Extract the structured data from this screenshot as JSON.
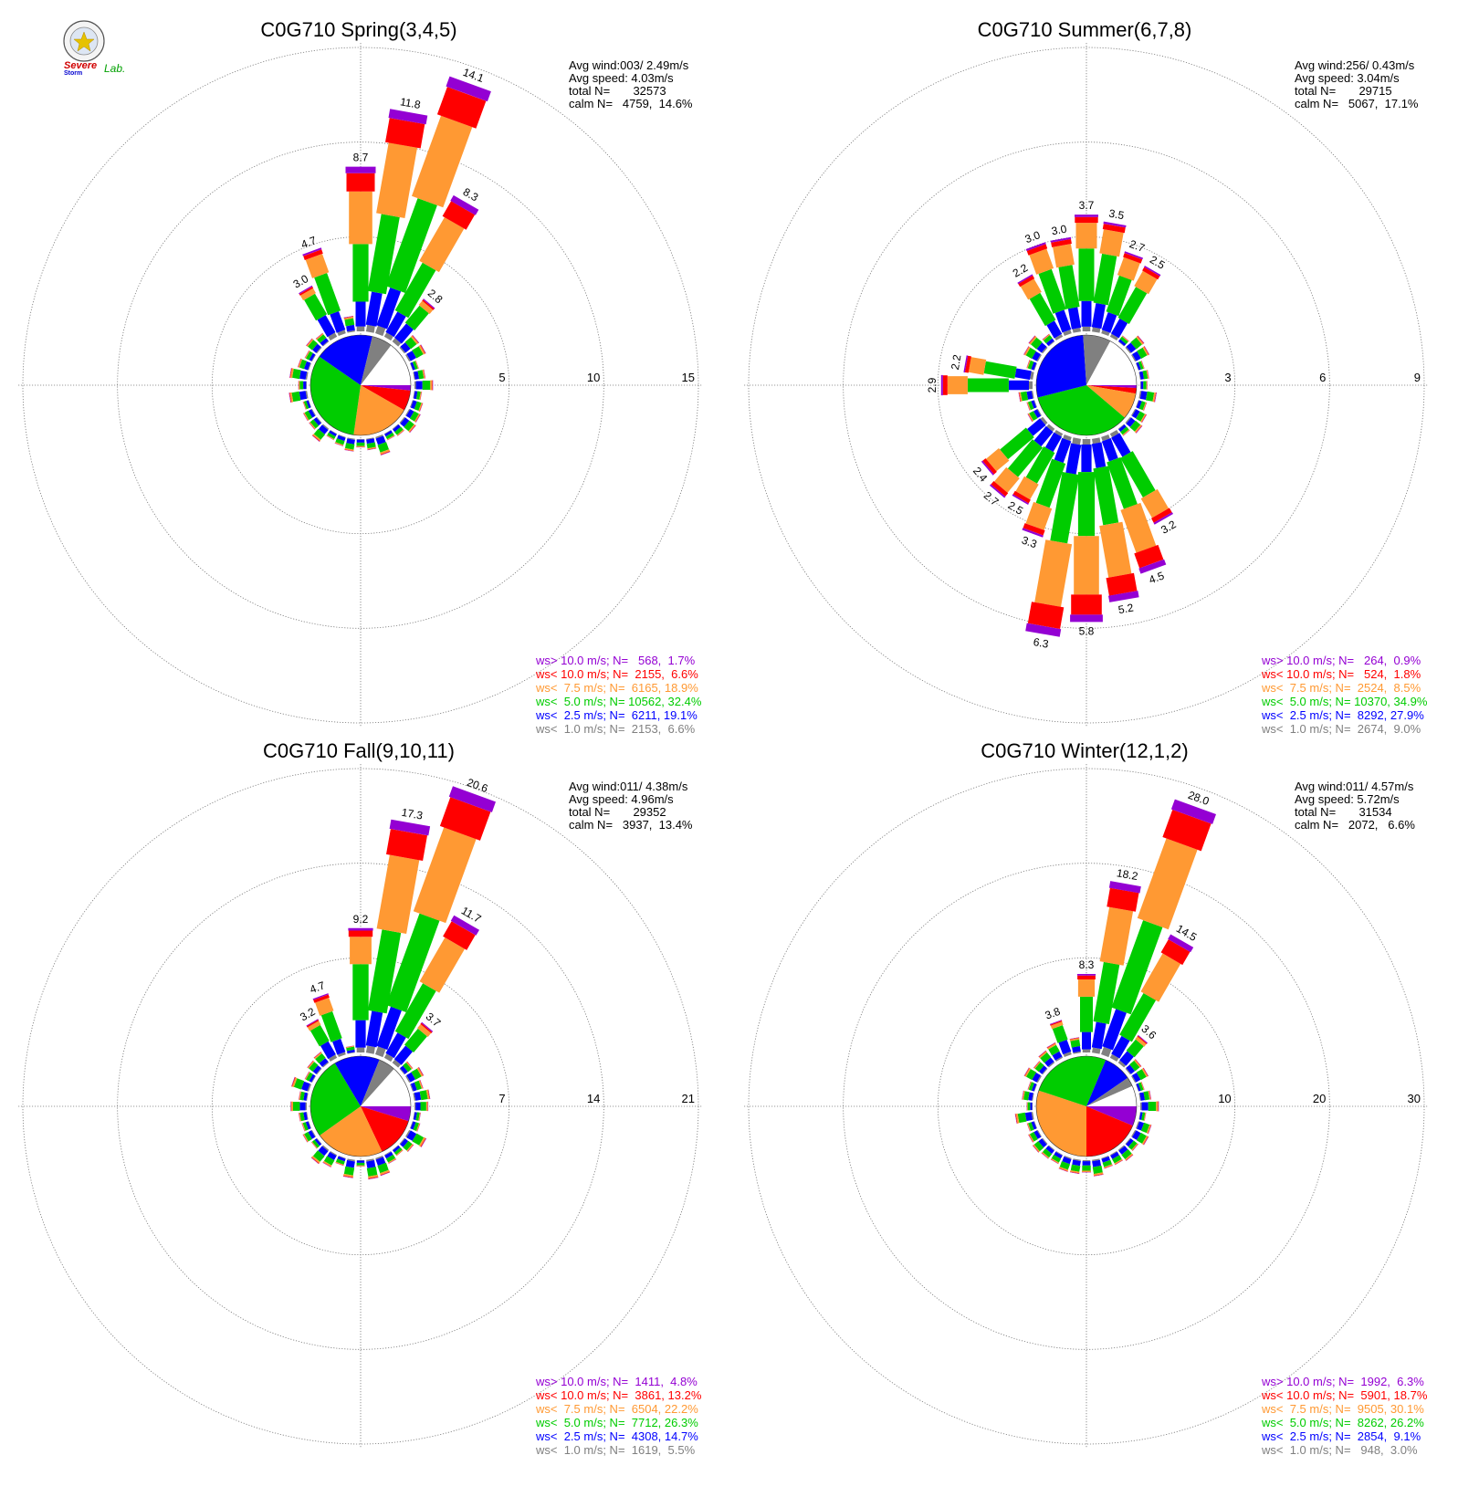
{
  "logo": {
    "seal_text": "",
    "word1": "Severe",
    "word2": "Storm",
    "word3": "Lab."
  },
  "colors": {
    "gt10": "#9400d3",
    "lt10": "#ff0000",
    "lt7_5": "#ff9933",
    "lt5": "#00cc00",
    "lt2_5": "#0000ff",
    "lt1": "#808080"
  },
  "chart_data": [
    {
      "type": "rose",
      "title": "C0G710 Spring(3,4,5)",
      "info": [
        "Avg wind:003/ 2.49m/s",
        "Avg speed: 4.03m/s",
        "total N=       32573",
        "calm N=   4759,  14.6%"
      ],
      "rings": [
        5,
        10,
        15
      ],
      "ring_labels": [
        "5",
        "10",
        "15"
      ],
      "bar_labels": [
        {
          "dir": 330,
          "text": "3.0",
          "value": 3.0
        },
        {
          "dir": 340,
          "text": "4.7",
          "value": 4.7
        },
        {
          "dir": 0,
          "text": "8.7",
          "value": 8.7
        },
        {
          "dir": 10,
          "text": "11.8",
          "value": 11.8
        },
        {
          "dir": 20,
          "text": "14.1",
          "value": 14.1
        },
        {
          "dir": 30,
          "text": "8.3",
          "value": 8.3
        },
        {
          "dir": 40,
          "text": "2.8",
          "value": 2.8
        }
      ],
      "pie": [
        1.7,
        6.6,
        18.9,
        32.4,
        19.1,
        6.6,
        14.6
      ],
      "legend": [
        {
          "key": "gt10",
          "text": "ws> 10.0 m/s; N=   568,  1.7%"
        },
        {
          "key": "lt10",
          "text": "ws< 10.0 m/s; N=  2155,  6.6%"
        },
        {
          "key": "lt7_5",
          "text": "ws<  7.5 m/s; N=  6165, 18.9%"
        },
        {
          "key": "lt5",
          "text": "ws<  5.0 m/s; N= 10562, 32.4%"
        },
        {
          "key": "lt2_5",
          "text": "ws<  2.5 m/s; N=  6211, 19.1%"
        },
        {
          "key": "lt1",
          "text": "ws<  1.0 m/s; N=  2153,  6.6%"
        }
      ]
    },
    {
      "type": "rose",
      "title": "C0G710 Summer(6,7,8)",
      "info": [
        "Avg wind:256/ 0.43m/s",
        "Avg speed: 3.04m/s",
        "total N=       29715",
        "calm N=   5067,  17.1%"
      ],
      "rings": [
        3,
        6,
        9
      ],
      "ring_labels": [
        "3",
        "6",
        "9"
      ],
      "bar_labels": [
        {
          "dir": 0,
          "text": "3.7",
          "value": 3.7
        },
        {
          "dir": 10,
          "text": "3.5",
          "value": 3.5
        },
        {
          "dir": 20,
          "text": "2.7",
          "value": 2.7
        },
        {
          "dir": 30,
          "text": "2.5",
          "value": 2.5
        },
        {
          "dir": 330,
          "text": "2.2",
          "value": 2.2
        },
        {
          "dir": 340,
          "text": "3.0",
          "value": 3.0
        },
        {
          "dir": 350,
          "text": "3.0",
          "value": 3.0
        },
        {
          "dir": 280,
          "text": "2.2",
          "value": 2.2
        },
        {
          "dir": 270,
          "text": "2.9",
          "value": 2.9
        },
        {
          "dir": 230,
          "text": "2.4",
          "value": 2.4
        },
        {
          "dir": 220,
          "text": "2.7",
          "value": 2.7
        },
        {
          "dir": 210,
          "text": "2.5",
          "value": 2.5
        },
        {
          "dir": 200,
          "text": "3.3",
          "value": 3.3
        },
        {
          "dir": 190,
          "text": "6.3",
          "value": 6.3
        },
        {
          "dir": 180,
          "text": "5.8",
          "value": 5.8
        },
        {
          "dir": 170,
          "text": "5.2",
          "value": 5.2
        },
        {
          "dir": 160,
          "text": "4.5",
          "value": 4.5
        },
        {
          "dir": 150,
          "text": "3.2",
          "value": 3.2
        }
      ],
      "pie": [
        0.9,
        1.8,
        8.5,
        34.9,
        27.9,
        9.0,
        17.1
      ],
      "legend": [
        {
          "key": "gt10",
          "text": "ws> 10.0 m/s; N=   264,  0.9%"
        },
        {
          "key": "lt10",
          "text": "ws< 10.0 m/s; N=   524,  1.8%"
        },
        {
          "key": "lt7_5",
          "text": "ws<  7.5 m/s; N=  2524,  8.5%"
        },
        {
          "key": "lt5",
          "text": "ws<  5.0 m/s; N= 10370, 34.9%"
        },
        {
          "key": "lt2_5",
          "text": "ws<  2.5 m/s; N=  8292, 27.9%"
        },
        {
          "key": "lt1",
          "text": "ws<  1.0 m/s; N=  2674,  9.0%"
        }
      ]
    },
    {
      "type": "rose",
      "title": "C0G710 Fall(9,10,11)",
      "info": [
        "Avg wind:011/ 4.38m/s",
        "Avg speed: 4.96m/s",
        "total N=       29352",
        "calm N=   3937,  13.4%"
      ],
      "rings": [
        7,
        14,
        21
      ],
      "ring_labels": [
        "7",
        "14",
        "21"
      ],
      "bar_labels": [
        {
          "dir": 330,
          "text": "3.2",
          "value": 3.2
        },
        {
          "dir": 340,
          "text": "4.7",
          "value": 4.7
        },
        {
          "dir": 0,
          "text": "9.2",
          "value": 9.2
        },
        {
          "dir": 10,
          "text": "17.3",
          "value": 17.3
        },
        {
          "dir": 20,
          "text": "20.6",
          "value": 20.6
        },
        {
          "dir": 30,
          "text": "11.7",
          "value": 11.7
        },
        {
          "dir": 40,
          "text": "3.7",
          "value": 3.7
        }
      ],
      "pie": [
        4.8,
        13.2,
        22.2,
        26.3,
        14.7,
        5.5,
        13.4
      ],
      "legend": [
        {
          "key": "gt10",
          "text": "ws> 10.0 m/s; N=  1411,  4.8%"
        },
        {
          "key": "lt10",
          "text": "ws< 10.0 m/s; N=  3861, 13.2%"
        },
        {
          "key": "lt7_5",
          "text": "ws<  7.5 m/s; N=  6504, 22.2%"
        },
        {
          "key": "lt5",
          "text": "ws<  5.0 m/s; N=  7712, 26.3%"
        },
        {
          "key": "lt2_5",
          "text": "ws<  2.5 m/s; N=  4308, 14.7%"
        },
        {
          "key": "lt1",
          "text": "ws<  1.0 m/s; N=  1619,  5.5%"
        }
      ]
    },
    {
      "type": "rose",
      "title": "C0G710 Winter(12,1,2)",
      "info": [
        "Avg wind:011/ 4.57m/s",
        "Avg speed: 5.72m/s",
        "total N=       31534",
        "calm N=   2072,   6.6%"
      ],
      "rings": [
        10,
        20,
        30
      ],
      "ring_labels": [
        "10",
        "20",
        "30"
      ],
      "bar_labels": [
        {
          "dir": 340,
          "text": "3.8",
          "value": 3.8
        },
        {
          "dir": 0,
          "text": "8.3",
          "value": 8.3
        },
        {
          "dir": 10,
          "text": "18.2",
          "value": 18.2
        },
        {
          "dir": 20,
          "text": "28.0",
          "value": 28.0
        },
        {
          "dir": 30,
          "text": "14.5",
          "value": 14.5
        },
        {
          "dir": 40,
          "text": "3.6",
          "value": 3.6
        }
      ],
      "pie": [
        6.3,
        18.7,
        30.1,
        26.2,
        9.1,
        3.0,
        6.6
      ],
      "legend": [
        {
          "key": "gt10",
          "text": "ws> 10.0 m/s; N=  1992,  6.3%"
        },
        {
          "key": "lt10",
          "text": "ws< 10.0 m/s; N=  5901, 18.7%"
        },
        {
          "key": "lt7_5",
          "text": "ws<  7.5 m/s; N=  9505, 30.1%"
        },
        {
          "key": "lt5",
          "text": "ws<  5.0 m/s; N=  8262, 26.2%"
        },
        {
          "key": "lt2_5",
          "text": "ws<  2.5 m/s; N=  2854,  9.1%"
        },
        {
          "key": "lt1",
          "text": "ws<  1.0 m/s; N=   948,  3.0%"
        }
      ]
    }
  ]
}
